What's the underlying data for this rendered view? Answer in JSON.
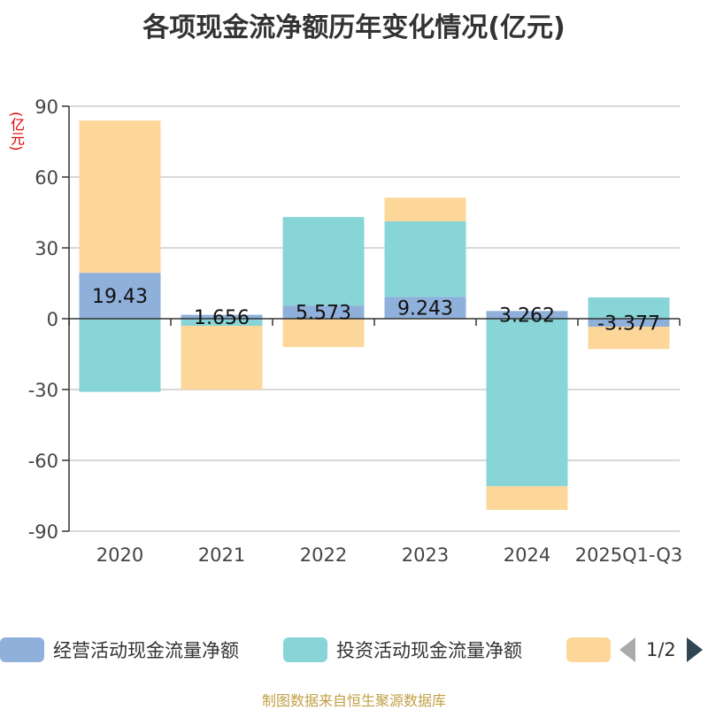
{
  "title": "各项现金流净额历年变化情况(亿元)",
  "unit": "(亿元)",
  "source": "制图数据来自恒生聚源数据库",
  "legend": {
    "items": [
      {
        "label": "经营活动现金流量净额",
        "color": "#8fb0da"
      },
      {
        "label": "投资活动现金流量净额",
        "color": "#88d5d8"
      },
      {
        "label": "",
        "color": "#fdd79a"
      }
    ],
    "page": "1/2"
  },
  "chart_data": {
    "type": "bar",
    "stacked": true,
    "categories": [
      "2020",
      "2021",
      "2022",
      "2023",
      "2024",
      "2025Q1-Q3"
    ],
    "ylim": [
      -90,
      90
    ],
    "yticks": [
      90,
      60,
      30,
      0,
      -30,
      -60,
      -90
    ],
    "series": [
      {
        "name": "经营活动现金流量净额",
        "color": "#8fb0da",
        "values": [
          19.43,
          1.656,
          5.573,
          9.243,
          3.262,
          -3.377
        ]
      },
      {
        "name": "投资活动现金流量净额",
        "color": "#88d5d8",
        "values": [
          -31.0,
          -3.0,
          37.5,
          32.0,
          -71.0,
          9.0
        ]
      },
      {
        "name": "",
        "color": "#fdd79a",
        "values": [
          64.5,
          -27.0,
          -12.0,
          10.0,
          -10.0,
          -9.5
        ]
      }
    ],
    "data_labels": [
      "19.43",
      "1.656",
      "5.573",
      "9.243",
      "3.262",
      "-3.377"
    ]
  }
}
